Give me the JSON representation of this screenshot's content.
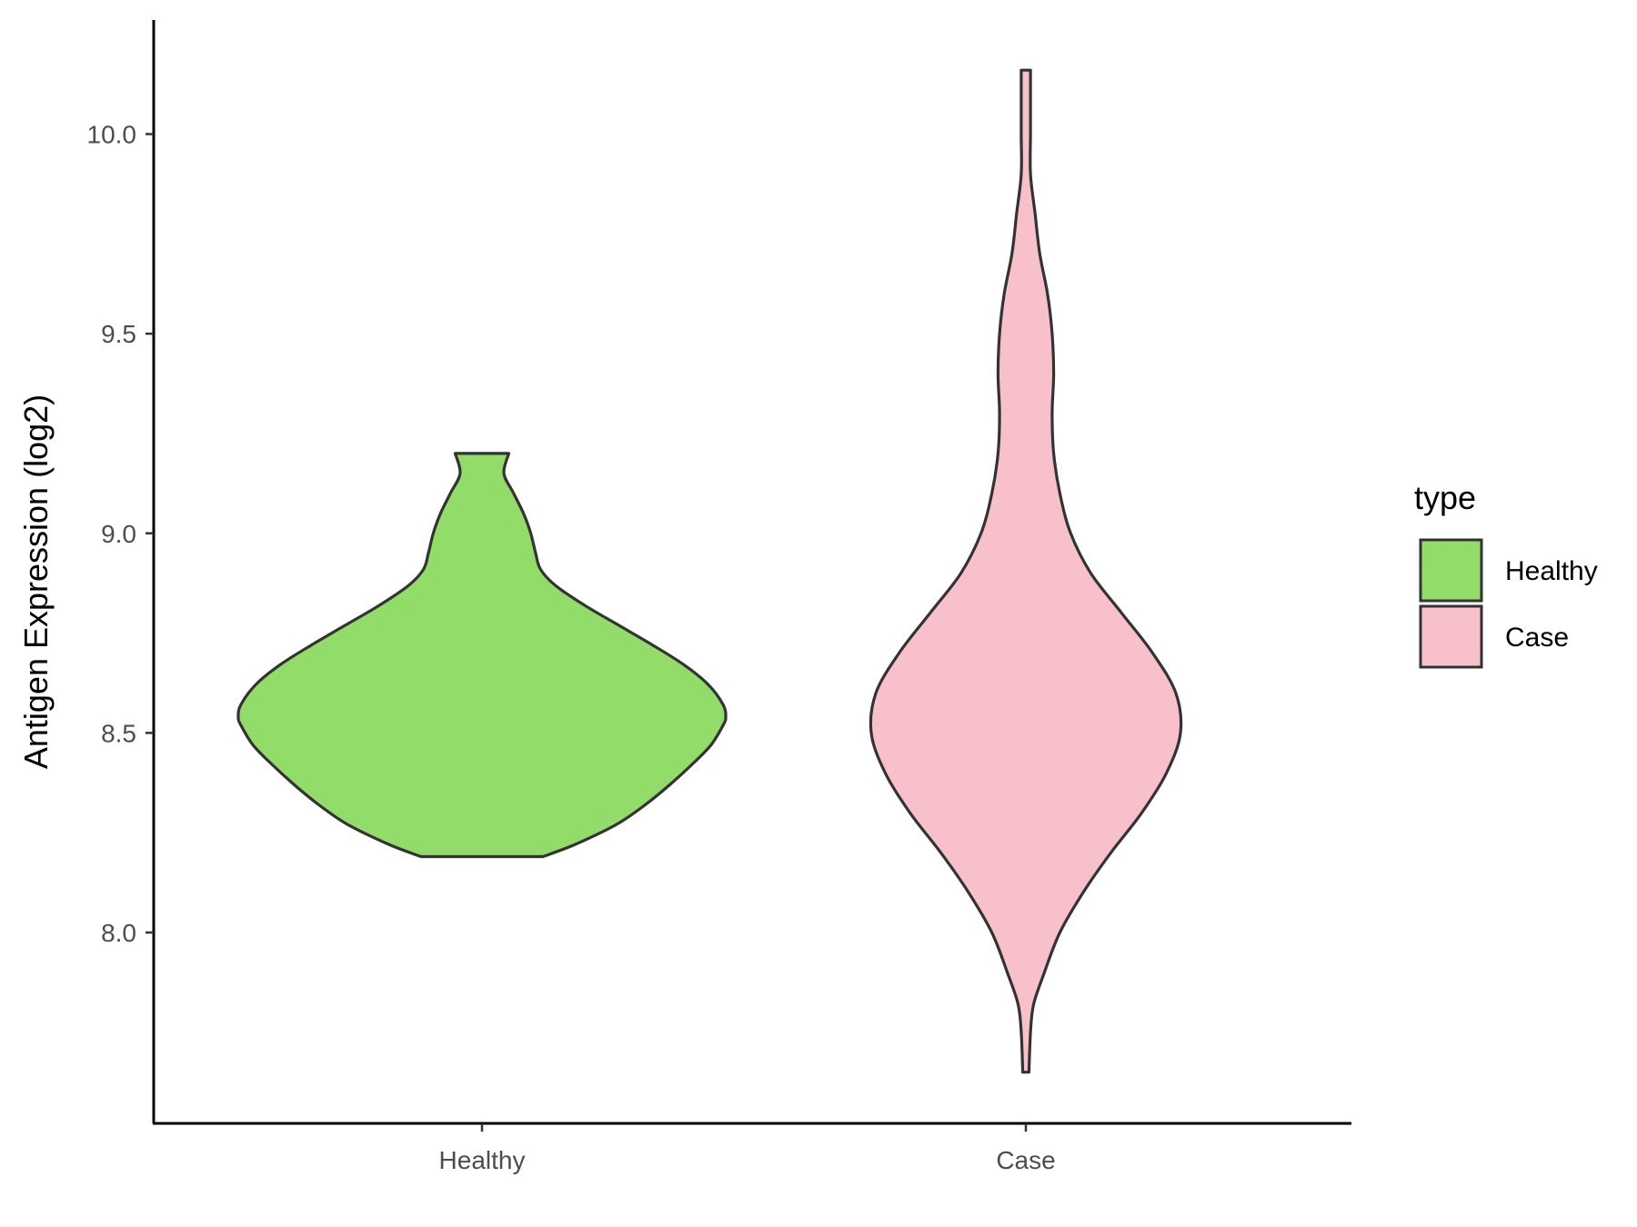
{
  "chart_data": {
    "type": "violin",
    "title": "",
    "xlabel": "",
    "ylabel": "Antigen Expression (log2)",
    "ylim": [
      7.53,
      10.3
    ],
    "yticks": [
      8.0,
      8.5,
      9.0,
      9.5,
      10.0
    ],
    "ytick_labels": [
      "8.0",
      "8.5",
      "9.0",
      "9.5",
      "10.0"
    ],
    "categories": [
      "Healthy",
      "Case"
    ],
    "grid": false,
    "legend": {
      "title": "type",
      "position": "right",
      "entries": [
        {
          "label": "Healthy",
          "color": "#92dc6a"
        },
        {
          "label": "Case",
          "color": "#f8c0cb"
        }
      ]
    },
    "outline_color": "#333333",
    "series": [
      {
        "category": "Healthy",
        "color": "#92dc6a",
        "min": 8.19,
        "max": 9.2,
        "density_profile": [
          [
            8.19,
            0.25
          ],
          [
            8.22,
            0.38
          ],
          [
            8.27,
            0.55
          ],
          [
            8.32,
            0.67
          ],
          [
            8.37,
            0.77
          ],
          [
            8.42,
            0.86
          ],
          [
            8.47,
            0.94
          ],
          [
            8.52,
            0.99
          ],
          [
            8.54,
            1.0
          ],
          [
            8.57,
            0.99
          ],
          [
            8.62,
            0.93
          ],
          [
            8.67,
            0.83
          ],
          [
            8.72,
            0.7
          ],
          [
            8.77,
            0.56
          ],
          [
            8.82,
            0.42
          ],
          [
            8.87,
            0.3
          ],
          [
            8.91,
            0.24
          ],
          [
            8.95,
            0.22
          ],
          [
            9.0,
            0.2
          ],
          [
            9.05,
            0.17
          ],
          [
            9.1,
            0.13
          ],
          [
            9.15,
            0.09
          ],
          [
            9.2,
            0.11
          ]
        ]
      },
      {
        "category": "Case",
        "color": "#f8c0cb",
        "min": 7.65,
        "max": 10.16,
        "density_profile": [
          [
            7.65,
            0.02
          ],
          [
            7.75,
            0.03
          ],
          [
            7.82,
            0.05
          ],
          [
            7.9,
            0.12
          ],
          [
            8.0,
            0.22
          ],
          [
            8.1,
            0.37
          ],
          [
            8.2,
            0.55
          ],
          [
            8.3,
            0.75
          ],
          [
            8.4,
            0.91
          ],
          [
            8.5,
            1.0
          ],
          [
            8.6,
            0.97
          ],
          [
            8.7,
            0.82
          ],
          [
            8.8,
            0.62
          ],
          [
            8.9,
            0.42
          ],
          [
            9.0,
            0.29
          ],
          [
            9.1,
            0.22
          ],
          [
            9.2,
            0.18
          ],
          [
            9.3,
            0.17
          ],
          [
            9.4,
            0.18
          ],
          [
            9.5,
            0.17
          ],
          [
            9.6,
            0.14
          ],
          [
            9.7,
            0.09
          ],
          [
            9.8,
            0.06
          ],
          [
            9.9,
            0.03
          ],
          [
            10.0,
            0.03
          ],
          [
            10.1,
            0.03
          ],
          [
            10.16,
            0.03
          ]
        ]
      }
    ]
  }
}
